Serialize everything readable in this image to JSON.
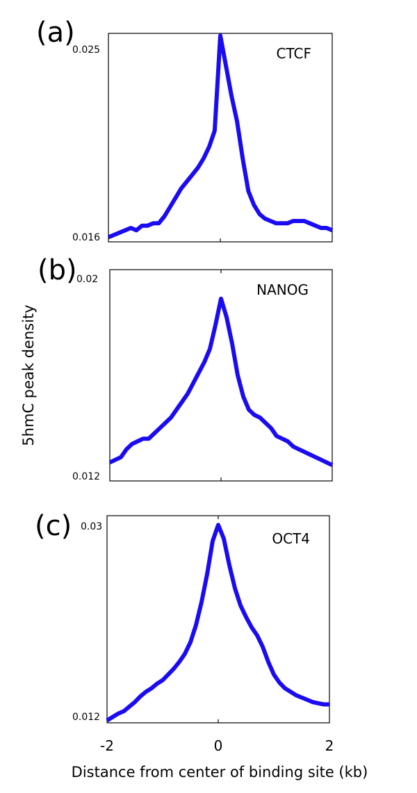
{
  "colors": {
    "series": "#1a0cf2",
    "frame": "#000000"
  },
  "figure": {
    "ylabel": "5hmC peak density",
    "xlabel": "Distance from center of binding site (kb)",
    "xticks": [
      "-2",
      "0",
      "2"
    ]
  },
  "chart_data": [
    {
      "type": "line",
      "panel": "(a)",
      "xlim": [
        -2,
        2
      ],
      "ylim": [
        0.016,
        0.025
      ],
      "ytick_labels": {
        "min": "0.016",
        "max": "0.025"
      },
      "series": [
        {
          "name": "CTCF",
          "x": [
            -2.0,
            -1.9,
            -1.8,
            -1.7,
            -1.6,
            -1.5,
            -1.4,
            -1.3,
            -1.2,
            -1.1,
            -1.0,
            -0.9,
            -0.8,
            -0.7,
            -0.6,
            -0.5,
            -0.4,
            -0.3,
            -0.2,
            -0.1,
            0.0,
            0.1,
            0.2,
            0.3,
            0.4,
            0.5,
            0.6,
            0.7,
            0.8,
            0.9,
            1.0,
            1.1,
            1.2,
            1.3,
            1.4,
            1.5,
            1.6,
            1.7,
            1.8,
            1.9,
            2.0
          ],
          "y": [
            0.0162,
            0.0163,
            0.0164,
            0.0165,
            0.0166,
            0.0165,
            0.0167,
            0.0167,
            0.0168,
            0.0168,
            0.0171,
            0.0175,
            0.0179,
            0.0183,
            0.0186,
            0.0189,
            0.0192,
            0.0196,
            0.0201,
            0.0208,
            0.0249,
            0.0236,
            0.0223,
            0.0212,
            0.0196,
            0.0182,
            0.0176,
            0.0172,
            0.017,
            0.0169,
            0.0168,
            0.0168,
            0.0168,
            0.0169,
            0.0169,
            0.0169,
            0.0168,
            0.0167,
            0.0166,
            0.0166,
            0.0165
          ]
        }
      ]
    },
    {
      "type": "line",
      "panel": "(b)",
      "xlim": [
        -2,
        2
      ],
      "ylim": [
        0.012,
        0.02
      ],
      "ytick_labels": {
        "min": "0.012",
        "max": "0.02"
      },
      "series": [
        {
          "name": "NANOG",
          "x": [
            -2.0,
            -1.9,
            -1.8,
            -1.7,
            -1.6,
            -1.5,
            -1.4,
            -1.3,
            -1.2,
            -1.1,
            -1.0,
            -0.9,
            -0.8,
            -0.7,
            -0.6,
            -0.5,
            -0.4,
            -0.3,
            -0.2,
            -0.1,
            0.0,
            0.1,
            0.2,
            0.3,
            0.4,
            0.5,
            0.6,
            0.7,
            0.8,
            0.9,
            1.0,
            1.1,
            1.2,
            1.3,
            1.4,
            1.5,
            1.6,
            1.7,
            1.8,
            1.9,
            2.0
          ],
          "y": [
            0.0127,
            0.0128,
            0.0129,
            0.0132,
            0.0134,
            0.0135,
            0.0136,
            0.0136,
            0.0138,
            0.014,
            0.0142,
            0.0144,
            0.0147,
            0.015,
            0.0153,
            0.0157,
            0.0161,
            0.0165,
            0.017,
            0.0179,
            0.0189,
            0.0182,
            0.0172,
            0.016,
            0.0152,
            0.0147,
            0.0145,
            0.0144,
            0.0142,
            0.014,
            0.0137,
            0.0136,
            0.0135,
            0.0133,
            0.0132,
            0.0131,
            0.013,
            0.0129,
            0.0128,
            0.0127,
            0.0126
          ]
        }
      ]
    },
    {
      "type": "line",
      "panel": "(c)",
      "xlim": [
        -2,
        2
      ],
      "ylim": [
        0.012,
        0.03
      ],
      "ytick_labels": {
        "min": "0.012",
        "max": "0.03"
      },
      "series": [
        {
          "name": "OCT4",
          "x": [
            -2.0,
            -1.9,
            -1.8,
            -1.7,
            -1.6,
            -1.5,
            -1.4,
            -1.3,
            -1.2,
            -1.1,
            -1.0,
            -0.9,
            -0.8,
            -0.7,
            -0.6,
            -0.5,
            -0.4,
            -0.3,
            -0.2,
            -0.1,
            0.0,
            0.1,
            0.2,
            0.3,
            0.4,
            0.5,
            0.6,
            0.7,
            0.8,
            0.9,
            1.0,
            1.1,
            1.2,
            1.3,
            1.4,
            1.5,
            1.6,
            1.7,
            1.8,
            1.9,
            2.0
          ],
          "y": [
            0.0122,
            0.0125,
            0.0128,
            0.013,
            0.0134,
            0.0138,
            0.0143,
            0.0147,
            0.015,
            0.0154,
            0.0157,
            0.0162,
            0.0167,
            0.0173,
            0.018,
            0.019,
            0.0205,
            0.0225,
            0.0249,
            0.0278,
            0.0292,
            0.028,
            0.0257,
            0.0237,
            0.0222,
            0.0212,
            0.0203,
            0.0196,
            0.0186,
            0.0173,
            0.0162,
            0.0155,
            0.015,
            0.0147,
            0.0144,
            0.0142,
            0.014,
            0.0138,
            0.0137,
            0.0136,
            0.0136
          ]
        }
      ]
    }
  ]
}
